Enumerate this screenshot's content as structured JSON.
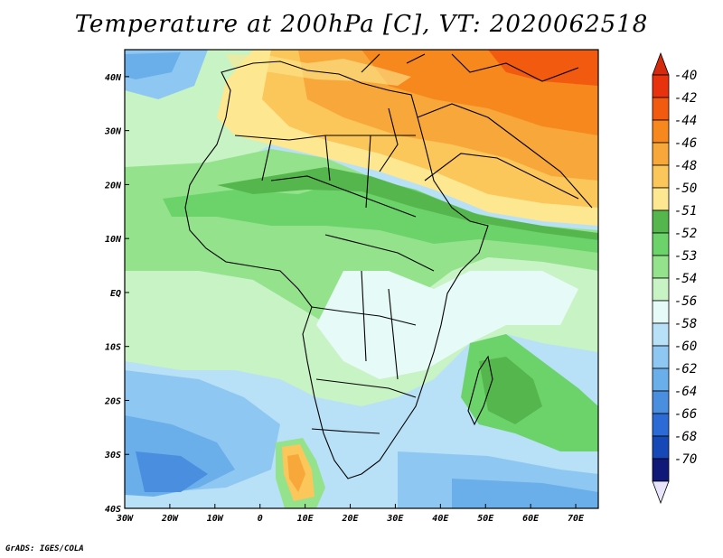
{
  "title": "Temperature at 200hPa [C], VT: 2020062518",
  "credit": "GrADS: IGES/COLA",
  "map": {
    "lat_labels": [
      "40N",
      "30N",
      "20N",
      "10N",
      "EQ",
      "10S",
      "20S",
      "30S",
      "40S"
    ],
    "lon_labels": [
      "30W",
      "20W",
      "10W",
      "0",
      "10E",
      "20E",
      "30E",
      "40E",
      "50E",
      "60E",
      "70E"
    ],
    "lon_range": [
      -30,
      75
    ],
    "lat_range": [
      -40,
      45
    ]
  },
  "colorbar": {
    "labels": [
      "-40",
      "-42",
      "-44",
      "-46",
      "-48",
      "-50",
      "-51",
      "-52",
      "-53",
      "-54",
      "-56",
      "-58",
      "-60",
      "-62",
      "-64",
      "-66",
      "-68",
      "-70"
    ],
    "colors": [
      "#e8320e",
      "#f25a10",
      "#f6881e",
      "#f8a83a",
      "#fbc65a",
      "#fde790",
      "#56b64e",
      "#6cd36a",
      "#94e38c",
      "#c8f3c4",
      "#e6faf8",
      "#b8e0f6",
      "#8ec8f2",
      "#6aaeea",
      "#4a8edf",
      "#2c6ad6",
      "#1748b8",
      "#101878"
    ]
  }
}
